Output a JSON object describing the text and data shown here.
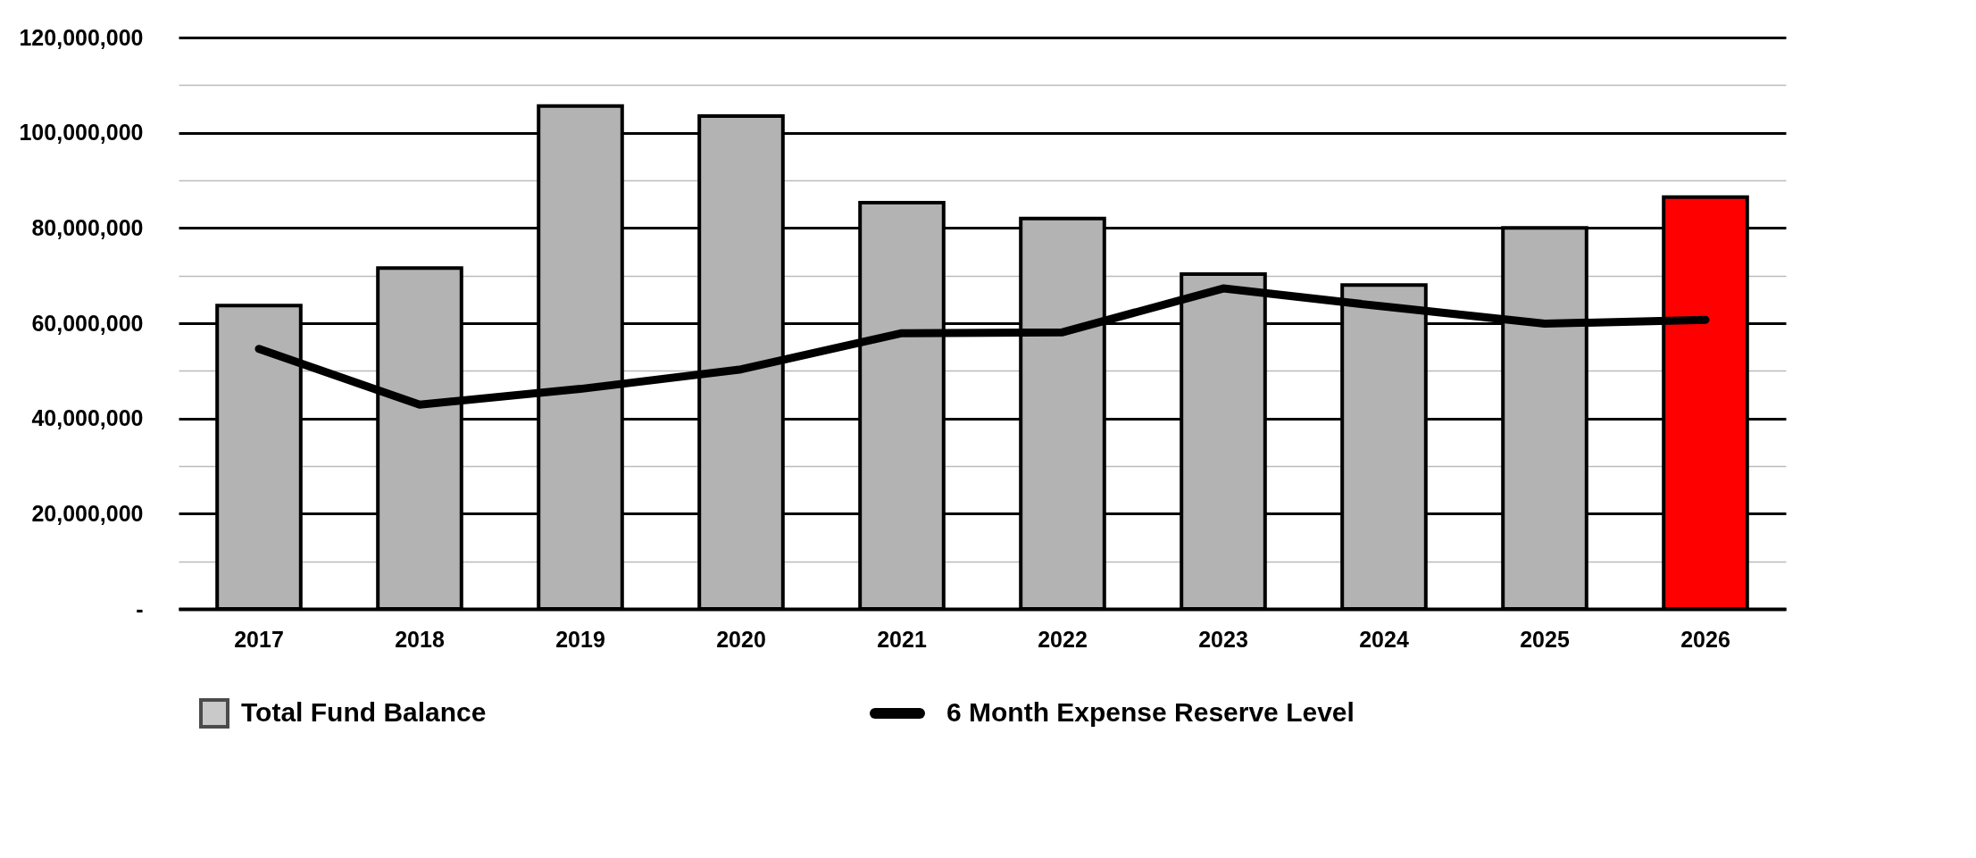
{
  "chart_data": {
    "type": "bar",
    "categories": [
      "2017",
      "2018",
      "2019",
      "2020",
      "2021",
      "2022",
      "2023",
      "2024",
      "2025",
      "2026"
    ],
    "series": [
      {
        "name": "Total Fund Balance",
        "colors": [
          "#b3b3b3",
          "#b3b3b3",
          "#b3b3b3",
          "#b3b3b3",
          "#b3b3b3",
          "#b3b3b3",
          "#b3b3b3",
          "#b3b3b3",
          "#b3b3b3",
          "#ff0000"
        ],
        "values": [
          63700000,
          71600000,
          105600000,
          103500000,
          85300000,
          82000000,
          70300000,
          68000000,
          80000000,
          86500000
        ]
      },
      {
        "name": "6 Month Expense Reserve Level",
        "type": "line",
        "color": "#000000",
        "values": [
          54600000,
          42900000,
          46200000,
          50300000,
          57900000,
          58100000,
          67300000,
          63500000,
          59900000,
          60700000
        ]
      }
    ],
    "ylim": [
      0,
      120000000
    ],
    "yticks": [
      {
        "value": 0,
        "label": "-"
      },
      {
        "value": 10000000,
        "label": null
      },
      {
        "value": 20000000,
        "label": "20,000,000"
      },
      {
        "value": 30000000,
        "label": null
      },
      {
        "value": 40000000,
        "label": "40,000,000"
      },
      {
        "value": 50000000,
        "label": null
      },
      {
        "value": 60000000,
        "label": "60,000,000"
      },
      {
        "value": 70000000,
        "label": null
      },
      {
        "value": 80000000,
        "label": "80,000,000"
      },
      {
        "value": 90000000,
        "label": null
      },
      {
        "value": 100000000,
        "label": "100,000,000"
      },
      {
        "value": 110000000,
        "label": null
      },
      {
        "value": 120000000,
        "label": "120,000,000"
      }
    ],
    "grid": "y",
    "legend": "bottom",
    "line_style": "solid",
    "marker": "none"
  }
}
